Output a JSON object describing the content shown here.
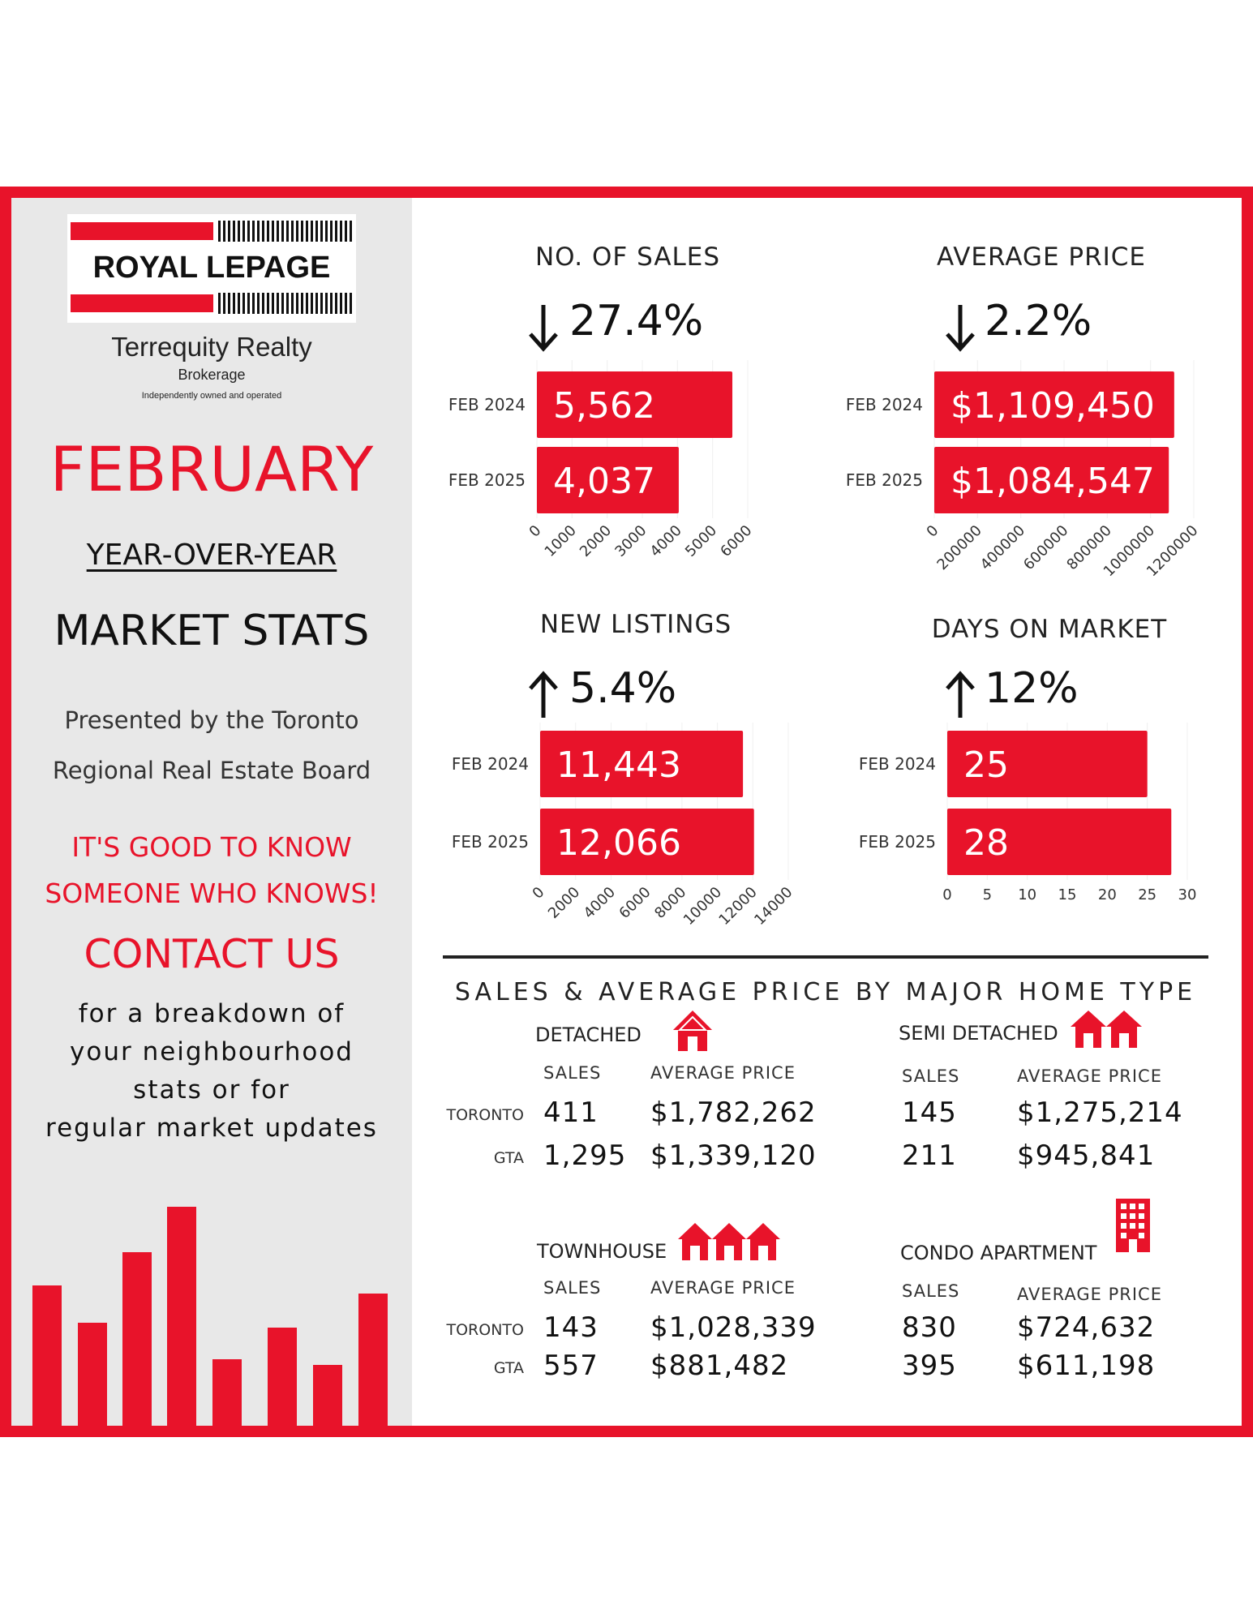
{
  "brand": {
    "logo_text": "ROYAL LEPAGE",
    "company": "Terrequity Realty",
    "brokerage": "Brokerage",
    "tagline": "Independently owned and operated"
  },
  "left": {
    "month": "FEBRUARY",
    "subtitle": "YEAR-OVER-YEAR",
    "heading": "MARKET STATS",
    "presented_line1": "Presented by the Toronto",
    "presented_line2": "Regional Real Estate Board",
    "slogan_line1": "IT'S GOOD TO KNOW",
    "slogan_line2": "SOMEONE WHO KNOWS!",
    "contact": "CONTACT US",
    "contact_line1": "for a breakdown of",
    "contact_line2": "your neighbourhood",
    "contact_line3": "stats or for",
    "contact_line4": "regular market updates"
  },
  "colors": {
    "accent": "#e8132a",
    "panel": "#e8e8e8",
    "text": "#111111"
  },
  "icons": [
    "arrow-down-icon",
    "arrow-up-icon",
    "house-icon",
    "semi-detached-icon",
    "townhouse-icon",
    "condo-building-icon"
  ],
  "chart_data": [
    {
      "type": "bar",
      "orientation": "horizontal",
      "title": "NO. OF SALES",
      "change": "27.4%",
      "direction": "down",
      "categories": [
        "FEB 2024",
        "FEB 2025"
      ],
      "values": [
        5562,
        4037
      ],
      "data_labels": [
        "5,562",
        "4,037"
      ],
      "xlim": [
        0,
        6000
      ],
      "ticks": [
        "0",
        "1000",
        "2000",
        "3000",
        "4000",
        "5000",
        "6000"
      ]
    },
    {
      "type": "bar",
      "orientation": "horizontal",
      "title": "AVERAGE PRICE",
      "change": "2.2%",
      "direction": "down",
      "categories": [
        "FEB 2024",
        "FEB 2025"
      ],
      "values": [
        1109450,
        1084547
      ],
      "data_labels": [
        "$1,109,450",
        "$1,084,547"
      ],
      "xlim": [
        0,
        1200000
      ],
      "ticks": [
        "0",
        "200000",
        "400000",
        "600000",
        "800000",
        "1000000",
        "1200000"
      ]
    },
    {
      "type": "bar",
      "orientation": "horizontal",
      "title": "NEW LISTINGS",
      "change": "5.4%",
      "direction": "up",
      "categories": [
        "FEB 2024",
        "FEB 2025"
      ],
      "values": [
        11443,
        12066
      ],
      "data_labels": [
        "11,443",
        "12,066"
      ],
      "xlim": [
        0,
        14000
      ],
      "ticks": [
        "0",
        "2000",
        "4000",
        "6000",
        "8000",
        "10000",
        "12000",
        "14000"
      ]
    },
    {
      "type": "bar",
      "orientation": "horizontal",
      "title": "DAYS ON MARKET",
      "change": "12%",
      "direction": "up",
      "categories": [
        "FEB 2024",
        "FEB 2025"
      ],
      "values": [
        25,
        28
      ],
      "data_labels": [
        "25",
        "28"
      ],
      "xlim": [
        0,
        30
      ],
      "ticks": [
        "0",
        "5",
        "10",
        "15",
        "20",
        "25",
        "30"
      ]
    },
    {
      "type": "table",
      "title": "SALES & AVERAGE PRICE BY MAJOR HOME TYPE",
      "col_sales": "SALES",
      "col_price": "AVERAGE PRICE",
      "rows": [
        "TORONTO",
        "GTA"
      ],
      "types": [
        {
          "name": "DETACHED",
          "sales": [
            "411",
            "1,295"
          ],
          "prices": [
            "$1,782,262",
            "$1,339,120"
          ]
        },
        {
          "name": "SEMI DETACHED",
          "sales": [
            "145",
            "211"
          ],
          "prices": [
            "$1,275,214",
            "$945,841"
          ]
        },
        {
          "name": "TOWNHOUSE",
          "sales": [
            "143",
            "557"
          ],
          "prices": [
            "$1,028,339",
            "$881,482"
          ]
        },
        {
          "name": "CONDO APARTMENT",
          "sales": [
            "830",
            "395"
          ],
          "prices": [
            "$724,632",
            "$611,198"
          ]
        }
      ]
    }
  ]
}
